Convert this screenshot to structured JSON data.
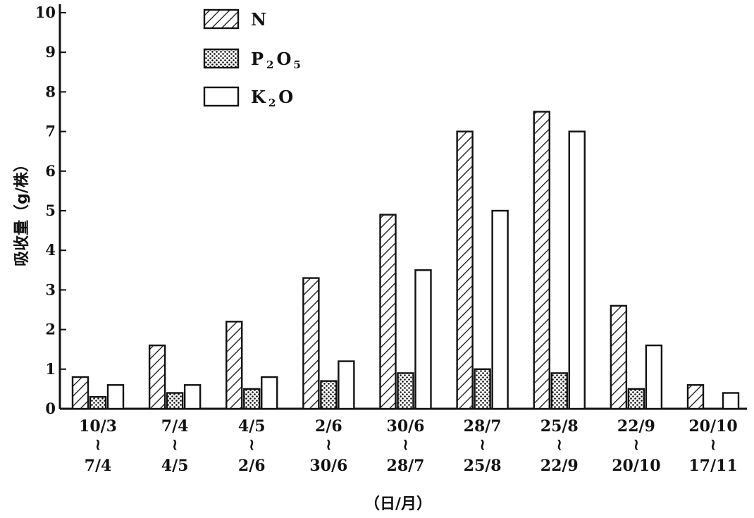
{
  "chart_data": {
    "type": "bar",
    "title": "",
    "ylabel": "吸收量（g/株）",
    "xlabel": "（日/月）",
    "ylim": [
      0,
      10
    ],
    "yticks": [
      "0",
      "1",
      "2",
      "3",
      "4",
      "5",
      "6",
      "7",
      "8",
      "9",
      "10"
    ],
    "grid": false,
    "legend_position": "top-left",
    "categories": [
      {
        "from": "10/3",
        "sep": "≀",
        "to": "7/4"
      },
      {
        "from": "7/4",
        "sep": "≀",
        "to": "4/5"
      },
      {
        "from": "4/5",
        "sep": "≀",
        "to": "2/6"
      },
      {
        "from": "2/6",
        "sep": "≀",
        "to": "30/6"
      },
      {
        "from": "30/6",
        "sep": "≀",
        "to": "28/7"
      },
      {
        "from": "28/7",
        "sep": "≀",
        "to": "25/8"
      },
      {
        "from": "25/8",
        "sep": "≀",
        "to": "22/9"
      },
      {
        "from": "22/9",
        "sep": "≀",
        "to": "20/10"
      },
      {
        "from": "20/10",
        "sep": "≀",
        "to": "17/11"
      }
    ],
    "series": [
      {
        "name": "N",
        "name_main": "N",
        "name_sub1": "",
        "name_mid": "",
        "name_sub2": "",
        "pattern": "hatch",
        "values": [
          0.8,
          1.6,
          2.2,
          3.3,
          4.9,
          7.0,
          7.5,
          2.6,
          0.6
        ]
      },
      {
        "name": "P₂O₅",
        "name_main": "P",
        "name_sub1": "2",
        "name_mid": "O",
        "name_sub2": "5",
        "pattern": "dots",
        "values": [
          0.3,
          0.4,
          0.5,
          0.7,
          0.9,
          1.0,
          0.9,
          0.5,
          0.0
        ]
      },
      {
        "name": "K₂O",
        "name_main": "K",
        "name_sub1": "2",
        "name_mid": "O",
        "name_sub2": "",
        "pattern": "empty",
        "values": [
          0.6,
          0.6,
          0.8,
          1.2,
          3.5,
          5.0,
          7.0,
          1.6,
          0.4
        ]
      }
    ]
  }
}
